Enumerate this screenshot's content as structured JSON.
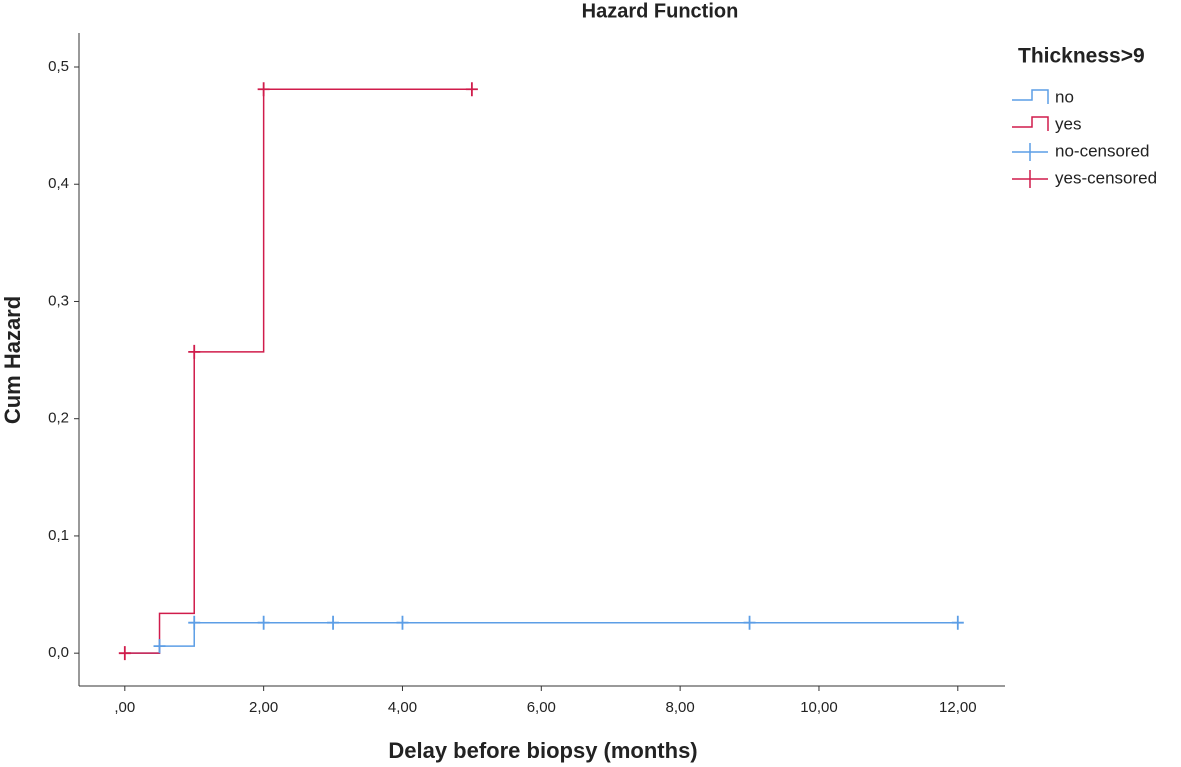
{
  "chart_data": {
    "type": "step",
    "title": "Hazard Function",
    "x_label": "Delay before biopsy (months)",
    "y_label": "Cum Hazard",
    "legend_title": "Thickness>9",
    "legend": "right",
    "xlim": [
      -0.66,
      12.68
    ],
    "ylim": [
      -0.028,
      0.529
    ],
    "xticks": [
      {
        "value": 0,
        "label": ",00"
      },
      {
        "value": 2,
        "label": "2,00"
      },
      {
        "value": 4,
        "label": "4,00"
      },
      {
        "value": 6,
        "label": "6,00"
      },
      {
        "value": 8,
        "label": "8,00"
      },
      {
        "value": 10,
        "label": "10,00"
      },
      {
        "value": 12,
        "label": "12,00"
      }
    ],
    "yticks": [
      {
        "value": 0,
        "label": "0,0"
      },
      {
        "value": 0.1,
        "label": "0,1"
      },
      {
        "value": 0.2,
        "label": "0,2"
      },
      {
        "value": 0.3,
        "label": "0,3"
      },
      {
        "value": 0.4,
        "label": "0,4"
      },
      {
        "value": 0.5,
        "label": "0,5"
      }
    ],
    "series": [
      {
        "name": "no",
        "color": "#5c9ee6",
        "marker": "step",
        "x": [
          0,
          0.5,
          1,
          12
        ],
        "values": [
          0,
          0.006,
          0.026,
          0.026
        ]
      },
      {
        "name": "yes",
        "color": "#d01c4b",
        "marker": "step",
        "x": [
          0,
          0.5,
          1,
          2,
          5
        ],
        "values": [
          0,
          0.034,
          0.257,
          0.481,
          0.481
        ]
      },
      {
        "name": "no-censored",
        "color": "#5c9ee6",
        "marker": "plus",
        "x": [
          0.5,
          1,
          2,
          3,
          4,
          9,
          12
        ],
        "values": [
          0.006,
          0.026,
          0.026,
          0.026,
          0.026,
          0.026,
          0.026
        ]
      },
      {
        "name": "yes-censored",
        "color": "#d01c4b",
        "marker": "plus",
        "x": [
          0,
          1,
          2,
          5
        ],
        "values": [
          0,
          0.257,
          0.481,
          0.481
        ]
      }
    ]
  }
}
